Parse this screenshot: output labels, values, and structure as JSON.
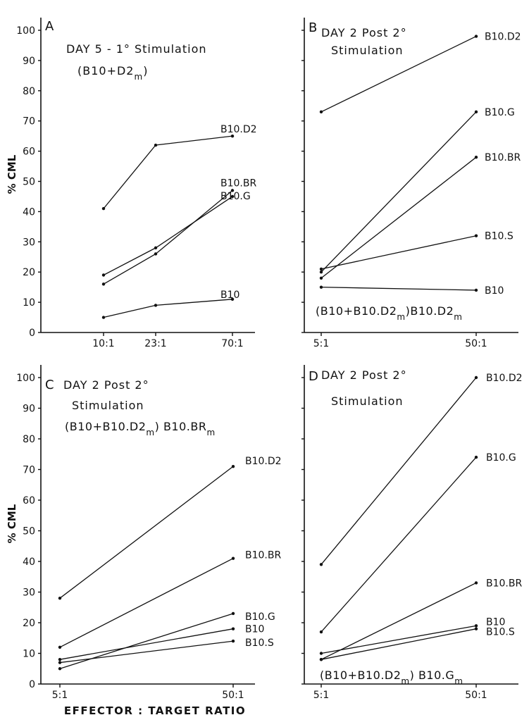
{
  "figure": {
    "y_axis_label": "% CML",
    "x_axis_label": "EFFECTOR : TARGET RATIO",
    "y_ticks": [
      0,
      10,
      20,
      30,
      40,
      50,
      60,
      70,
      80,
      90,
      100
    ],
    "ink_color": "#111111"
  },
  "chart_data": [
    {
      "type": "line",
      "panel": "A",
      "title": "DAY 5 - 1° Stimulation",
      "subtitle": "(B10+D2m)",
      "x": [
        "10:1",
        "23:1",
        "70:1"
      ],
      "ylim": [
        0,
        100
      ],
      "show_y_ticks": true,
      "show_y_label": true,
      "series": [
        {
          "name": "B10.D2",
          "values": [
            41,
            62,
            65
          ]
        },
        {
          "name": "B10.BR",
          "values": [
            16,
            26,
            47
          ]
        },
        {
          "name": "B10.G",
          "values": [
            19,
            28,
            45
          ]
        },
        {
          "name": "B10",
          "values": [
            5,
            9,
            11
          ]
        }
      ]
    },
    {
      "type": "line",
      "panel": "B",
      "title": "DAY 2  Post 2°",
      "subtitle": "Stimulation",
      "annotation": "(B10+B10.D2m)B10.D2m",
      "x": [
        "5:1",
        "50:1"
      ],
      "ylim": [
        0,
        100
      ],
      "show_y_ticks": false,
      "show_y_label": false,
      "series": [
        {
          "name": "B10.D2",
          "values": [
            73,
            98
          ]
        },
        {
          "name": "B10.G",
          "values": [
            20,
            73
          ]
        },
        {
          "name": "B10.BR",
          "values": [
            18,
            58
          ]
        },
        {
          "name": "B10.S",
          "values": [
            21,
            32
          ]
        },
        {
          "name": "B10",
          "values": [
            15,
            14
          ]
        }
      ]
    },
    {
      "type": "line",
      "panel": "C",
      "title": "DAY 2  Post 2°",
      "subtitle": "Stimulation",
      "annotation": "(B10+B10.D2m) B10.BRm",
      "x": [
        "5:1",
        "50:1"
      ],
      "ylim": [
        0,
        100
      ],
      "show_y_ticks": true,
      "show_y_label": true,
      "show_x_label": true,
      "series": [
        {
          "name": "B10.D2",
          "values": [
            28,
            71
          ]
        },
        {
          "name": "B10.BR",
          "values": [
            12,
            41
          ]
        },
        {
          "name": "B10.G",
          "values": [
            5,
            23
          ]
        },
        {
          "name": "B10",
          "values": [
            8,
            18
          ]
        },
        {
          "name": "B10.S",
          "values": [
            7,
            14
          ]
        }
      ]
    },
    {
      "type": "line",
      "panel": "D",
      "title": "DAY 2  Post 2°",
      "subtitle": "Stimulation",
      "annotation": "(B10+B10.D2m) B10.Gm",
      "x": [
        "5:1",
        "50:1"
      ],
      "ylim": [
        0,
        100
      ],
      "show_y_ticks": false,
      "show_y_label": false,
      "show_x_label": true,
      "series": [
        {
          "name": "B10.D2",
          "values": [
            39,
            100
          ]
        },
        {
          "name": "B10.G",
          "values": [
            17,
            74
          ]
        },
        {
          "name": "B10.BR",
          "values": [
            8,
            33
          ]
        },
        {
          "name": "B10",
          "values": [
            10,
            19
          ]
        },
        {
          "name": "B10.S",
          "values": [
            8,
            18
          ]
        }
      ]
    }
  ]
}
